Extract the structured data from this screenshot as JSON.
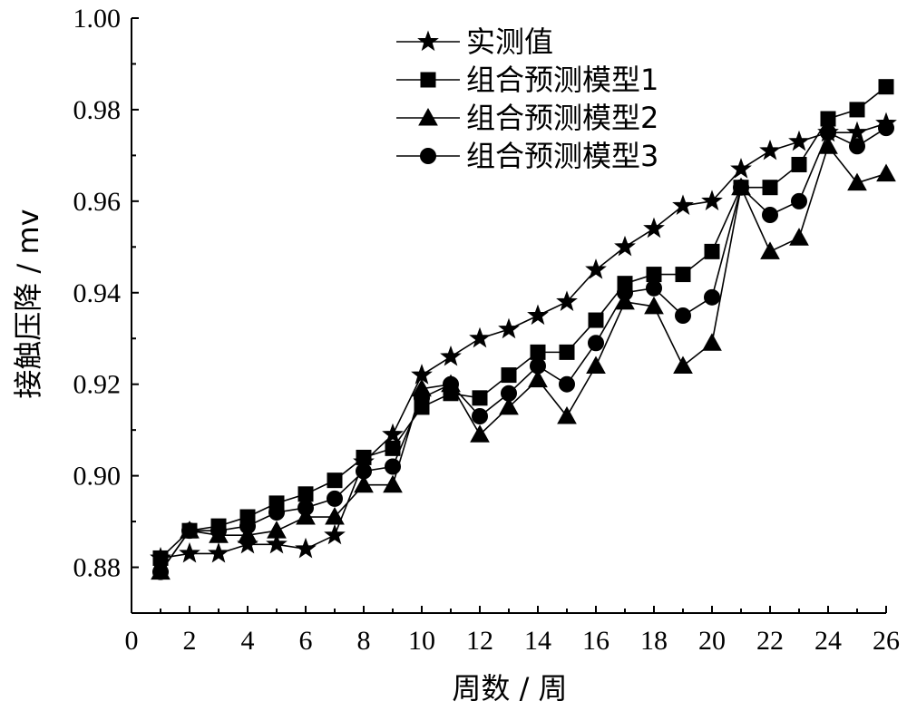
{
  "chart_data": {
    "type": "line",
    "title": "",
    "xlabel": "周数 / 周",
    "ylabel": "接触压降 / mv",
    "xlim": [
      0,
      26
    ],
    "ylim": [
      0.87,
      1.0
    ],
    "x_ticks": [
      0,
      2,
      4,
      6,
      8,
      10,
      12,
      14,
      16,
      18,
      20,
      22,
      24,
      26
    ],
    "y_ticks": [
      0.88,
      0.9,
      0.92,
      0.94,
      0.96,
      0.98,
      1.0
    ],
    "y_tick_labels": [
      "0.88",
      "0.90",
      "0.92",
      "0.94",
      "0.96",
      "0.98",
      "1.00"
    ],
    "grid": false,
    "legend_position": "top-center",
    "x": [
      1,
      2,
      3,
      4,
      5,
      6,
      7,
      8,
      9,
      10,
      11,
      12,
      13,
      14,
      15,
      16,
      17,
      18,
      19,
      20,
      21,
      22,
      23,
      24,
      25,
      26
    ],
    "series": [
      {
        "name": "实测值",
        "marker": "star",
        "values": [
          0.882,
          0.883,
          0.883,
          0.885,
          0.885,
          0.884,
          0.887,
          0.903,
          0.909,
          0.922,
          0.926,
          0.93,
          0.932,
          0.935,
          0.938,
          0.945,
          0.95,
          0.954,
          0.959,
          0.96,
          0.967,
          0.971,
          0.973,
          0.975,
          0.975,
          0.977
        ]
      },
      {
        "name": "组合预测模型1",
        "marker": "square",
        "values": [
          0.882,
          0.888,
          0.889,
          0.891,
          0.894,
          0.896,
          0.899,
          0.904,
          0.906,
          0.915,
          0.918,
          0.917,
          0.922,
          0.927,
          0.927,
          0.934,
          0.942,
          0.944,
          0.944,
          0.949,
          0.963,
          0.963,
          0.968,
          0.978,
          0.98,
          0.985
        ]
      },
      {
        "name": "组合预测模型2",
        "marker": "triangle",
        "values": [
          0.879,
          0.888,
          0.887,
          0.887,
          0.888,
          0.891,
          0.891,
          0.898,
          0.898,
          0.919,
          0.92,
          0.909,
          0.915,
          0.921,
          0.913,
          0.924,
          0.938,
          0.937,
          0.924,
          0.929,
          0.963,
          0.949,
          0.952,
          0.972,
          0.964,
          0.966
        ]
      },
      {
        "name": "组合预测模型3",
        "marker": "circle",
        "values": [
          0.879,
          0.888,
          0.888,
          0.889,
          0.892,
          0.893,
          0.895,
          0.901,
          0.902,
          0.917,
          0.92,
          0.913,
          0.918,
          0.924,
          0.92,
          0.929,
          0.94,
          0.941,
          0.935,
          0.939,
          0.963,
          0.957,
          0.96,
          0.975,
          0.972,
          0.976
        ]
      }
    ]
  }
}
